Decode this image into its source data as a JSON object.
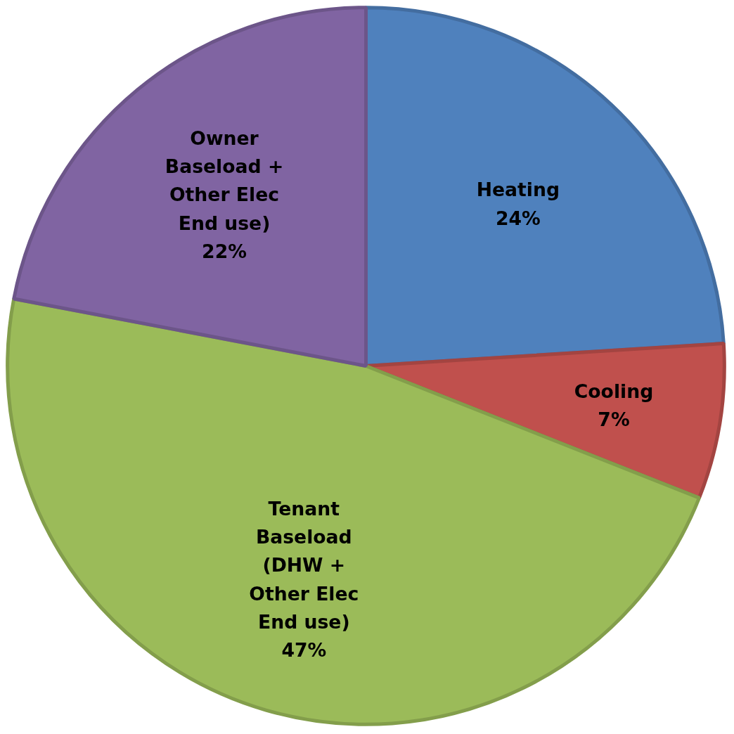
{
  "chart_data": {
    "type": "pie",
    "categories": [
      "Heating",
      "Cooling",
      "Tenant Baseload (DHW + Other Elec End use)",
      "Owner Baseload + Other Elec End use)"
    ],
    "values": [
      24,
      7,
      47,
      22
    ],
    "colors": [
      "#4f81bd",
      "#c0504d",
      "#9bbb59",
      "#8064a2"
    ],
    "value_labels": [
      "24%",
      "7%",
      "47%",
      "22%"
    ]
  }
}
